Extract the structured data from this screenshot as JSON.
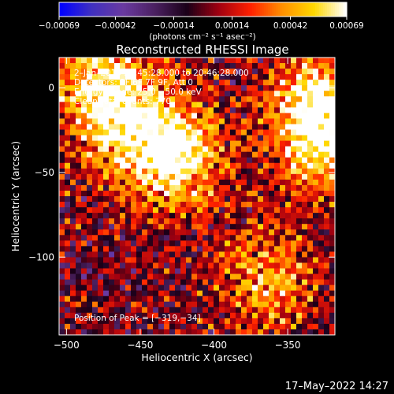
{
  "chart_data": {
    "type": "heatmap",
    "title": "Reconstructed RHESSI Image",
    "xlabel": "Heliocentric X (arcsec)",
    "ylabel": "Heliocentric Y (arcsec)",
    "xlim": [
      -505,
      -318
    ],
    "ylim": [
      -146,
      18
    ],
    "x_ticks": [
      -500,
      -450,
      -400,
      -350
    ],
    "y_ticks": [
      0,
      -50,
      -100
    ],
    "x_tick_labels": [
      "−500",
      "−450",
      "−400",
      "−350"
    ],
    "y_tick_labels": [
      "0",
      "−50",
      "−100"
    ],
    "colorbar": {
      "min": -0.00069,
      "max": 0.00069,
      "ticks": [
        -0.00069,
        -0.00042,
        -0.00014,
        0.00014,
        0.00042,
        0.00069
      ],
      "tick_labels": [
        "−0.00069",
        "−0.00042",
        "−0.00014",
        "0.00014",
        "0.00042",
        "0.00069"
      ],
      "unit_label": "(photons cm⁻² s⁻¹ asec⁻²)"
    },
    "annotations": [
      "2–Jan–2015 20:45:28.000 to 20:46:28.000",
      "Detectors: 3F 6F 7F 9F, Att 0",
      "Energy Range: 25.0 – 50.0 keV",
      "Clean    Total counts: 770."
    ],
    "peak_text": "Position of Peak = [−319,−34]",
    "peak_position": [
      -319,
      -34
    ],
    "sources": [
      {
        "x": -425,
        "y": -40,
        "amplitude": 0.00069
      },
      {
        "x": -455,
        "y": -25,
        "amplitude": 0.00045
      },
      {
        "x": -480,
        "y": -5,
        "amplitude": 0.00035
      },
      {
        "x": -325,
        "y": -30,
        "amplitude": 0.00069
      },
      {
        "x": -335,
        "y": -5,
        "amplitude": 0.0004
      },
      {
        "x": -365,
        "y": -115,
        "amplitude": 0.00045
      },
      {
        "x": -470,
        "y": 10,
        "amplitude": 0.0003
      }
    ],
    "colormap": [
      "#0000ff",
      "#4030c0",
      "#6a3aa0",
      "#4a2060",
      "#1a0018",
      "#a00010",
      "#ff2000",
      "#ff9000",
      "#ffd800",
      "#ffffff"
    ]
  },
  "footer": {
    "timestamp": "17–May–2022 14:27"
  }
}
